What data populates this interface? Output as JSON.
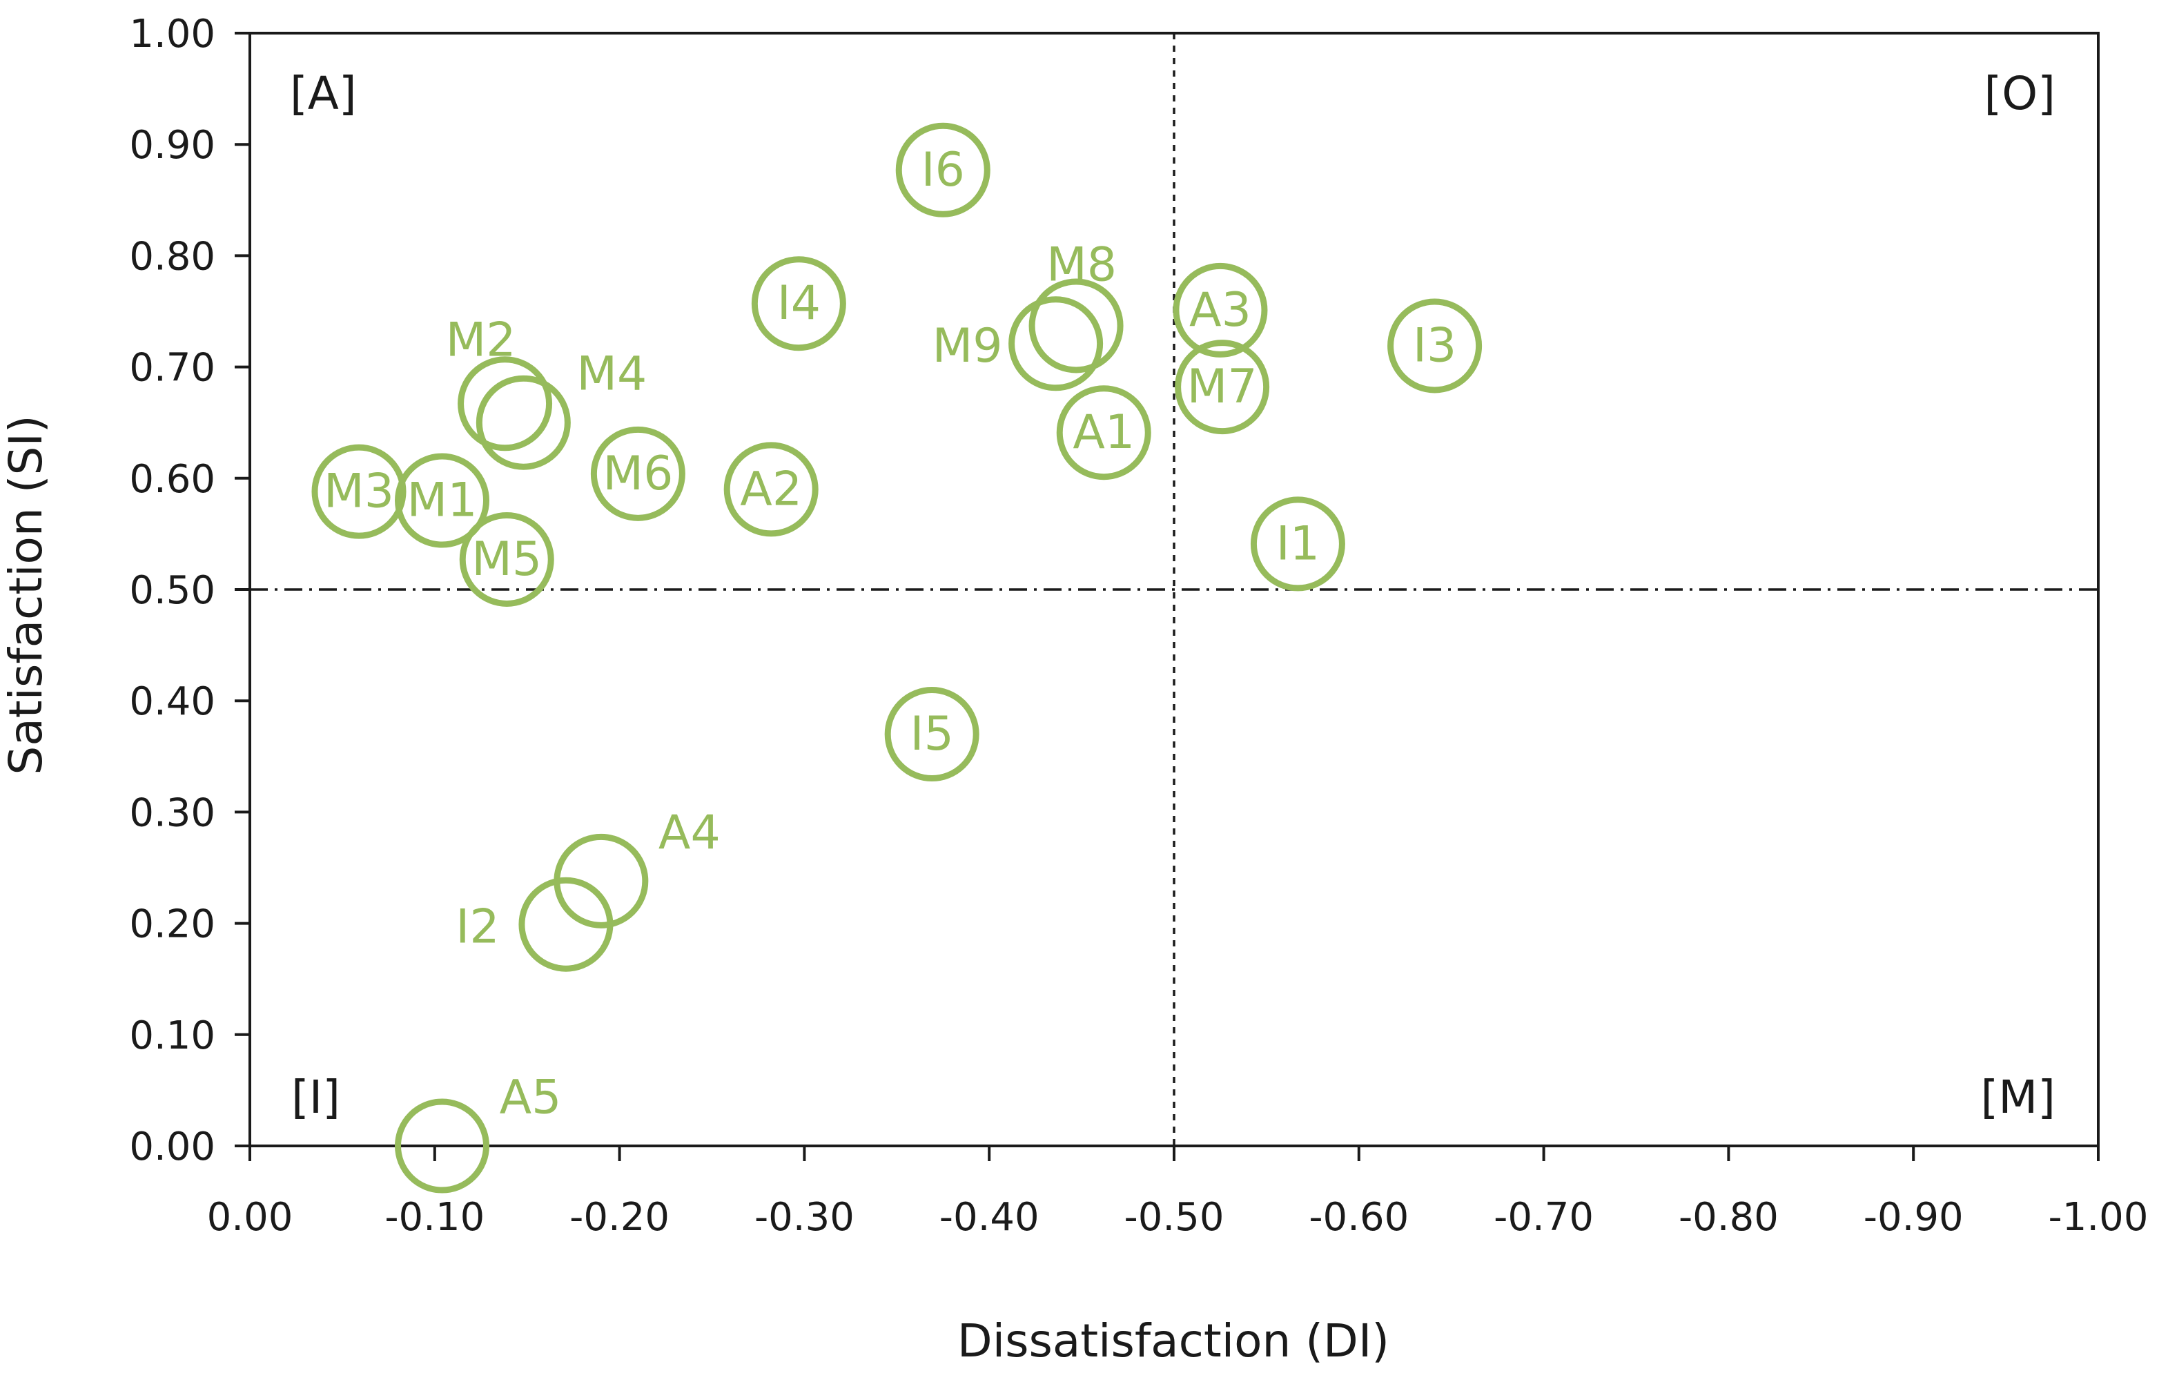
{
  "chart_data": {
    "type": "scatter",
    "title": "",
    "xlabel": "Dissatisfaction (DI)",
    "ylabel": "Satisfaction (SI)",
    "xlim": [
      0,
      -1.0
    ],
    "ylim": [
      0,
      1.0
    ],
    "x_tick_labels": [
      "0.00",
      "-0.10",
      "-0.20",
      "-0.30",
      "-0.40",
      "-0.50",
      "-0.60",
      "-0.70",
      "-0.80",
      "-0.90",
      "-1.00"
    ],
    "y_tick_labels": [
      "0.00",
      "0.10",
      "0.20",
      "0.30",
      "0.40",
      "0.50",
      "0.60",
      "0.70",
      "0.80",
      "0.90",
      "1.00"
    ],
    "reference_lines": {
      "x": -0.5,
      "y": 0.5
    },
    "quadrants": [
      {
        "id": "A",
        "label": "[A]",
        "position": "top-left"
      },
      {
        "id": "O",
        "label": "[O]",
        "position": "top-right"
      },
      {
        "id": "I",
        "label": "[I]",
        "position": "bottom-left"
      },
      {
        "id": "M",
        "label": "[M]",
        "position": "bottom-right"
      }
    ],
    "marker_color": "#96BB5B",
    "grid": false,
    "points": [
      {
        "label": "I6",
        "x": -0.375,
        "y": 0.877,
        "label_pos": "center"
      },
      {
        "label": "I4",
        "x": -0.297,
        "y": 0.757,
        "label_pos": "center"
      },
      {
        "label": "M8",
        "x": -0.447,
        "y": 0.737,
        "label_pos": "above"
      },
      {
        "label": "M9",
        "x": -0.436,
        "y": 0.721,
        "label_pos": "left"
      },
      {
        "label": "A3",
        "x": -0.525,
        "y": 0.751,
        "label_pos": "center"
      },
      {
        "label": "M7",
        "x": -0.526,
        "y": 0.682,
        "label_pos": "center"
      },
      {
        "label": "A1",
        "x": -0.462,
        "y": 0.641,
        "label_pos": "center"
      },
      {
        "label": "I3",
        "x": -0.641,
        "y": 0.719,
        "label_pos": "center"
      },
      {
        "label": "I1",
        "x": -0.567,
        "y": 0.541,
        "label_pos": "center"
      },
      {
        "label": "M2",
        "x": -0.138,
        "y": 0.667,
        "label_pos": "upper-left"
      },
      {
        "label": "M4",
        "x": -0.148,
        "y": 0.65,
        "label_pos": "upper-right"
      },
      {
        "label": "M6",
        "x": -0.21,
        "y": 0.604,
        "label_pos": "center"
      },
      {
        "label": "A2",
        "x": -0.282,
        "y": 0.59,
        "label_pos": "center"
      },
      {
        "label": "M3",
        "x": -0.059,
        "y": 0.588,
        "label_pos": "center"
      },
      {
        "label": "M1",
        "x": -0.104,
        "y": 0.58,
        "label_pos": "center"
      },
      {
        "label": "M5",
        "x": -0.139,
        "y": 0.527,
        "label_pos": "center"
      },
      {
        "label": "I5",
        "x": -0.369,
        "y": 0.37,
        "label_pos": "center"
      },
      {
        "label": "A4",
        "x": -0.19,
        "y": 0.238,
        "label_pos": "upper-right"
      },
      {
        "label": "I2",
        "x": -0.171,
        "y": 0.199,
        "label_pos": "left"
      },
      {
        "label": "A5",
        "x": -0.104,
        "y": 0.0,
        "label_pos": "upper-right"
      }
    ]
  }
}
